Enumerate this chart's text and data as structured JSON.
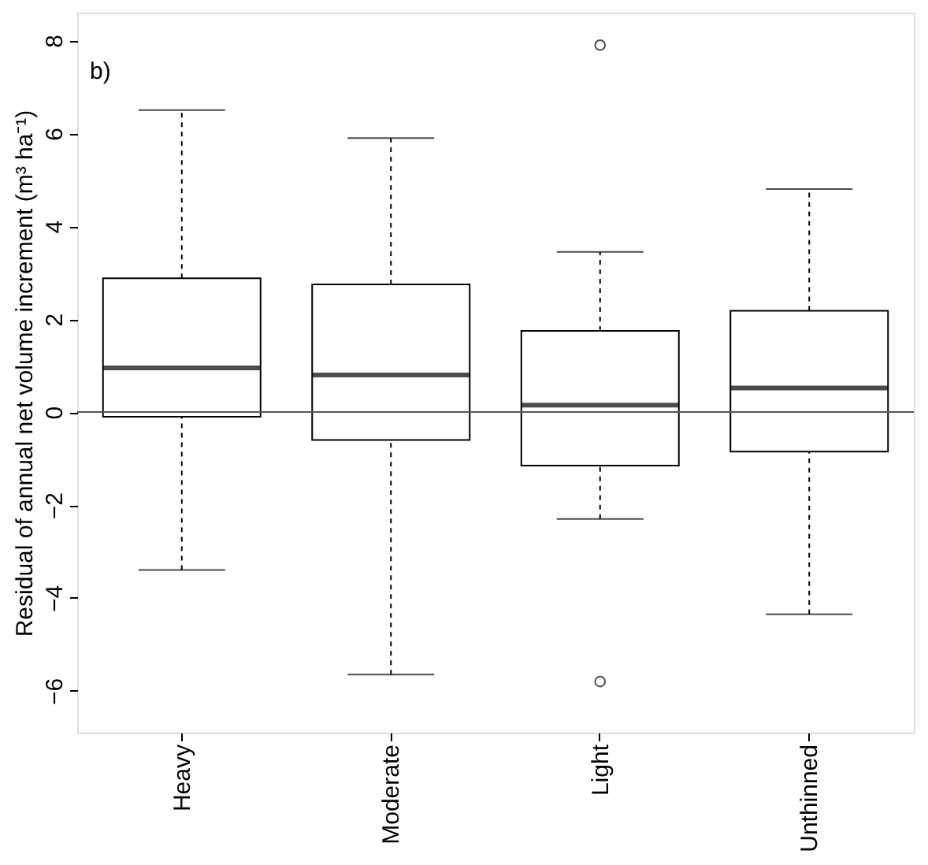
{
  "chart_data": {
    "type": "box",
    "ylabel": "Residual of annual net volume increment (m³ ha⁻¹)",
    "categories": [
      "Heavy",
      "Moderate",
      "Light",
      "Unthinned"
    ],
    "boxes": [
      {
        "low": -3.4,
        "q1": -0.1,
        "median": 0.95,
        "q3": 2.88,
        "high": 6.5
      },
      {
        "low": -5.65,
        "q1": -0.6,
        "median": 0.8,
        "q3": 2.75,
        "high": 5.9
      },
      {
        "low": -2.3,
        "q1": -1.15,
        "median": 0.15,
        "q3": 1.75,
        "high": 3.45,
        "outliers": [
          7.9,
          -5.8
        ]
      },
      {
        "low": -4.35,
        "q1": -0.85,
        "median": 0.52,
        "q3": 2.18,
        "high": 4.8
      }
    ],
    "ylim": [
      -6.9,
      8.6
    ],
    "yticks": [
      -6,
      -4,
      -2,
      0,
      2,
      4,
      6,
      8
    ],
    "grid": false,
    "ref_lines": [
      {
        "axis": "y",
        "value": 0,
        "color": "#555555"
      }
    ],
    "annotations": [
      "b)"
    ]
  }
}
